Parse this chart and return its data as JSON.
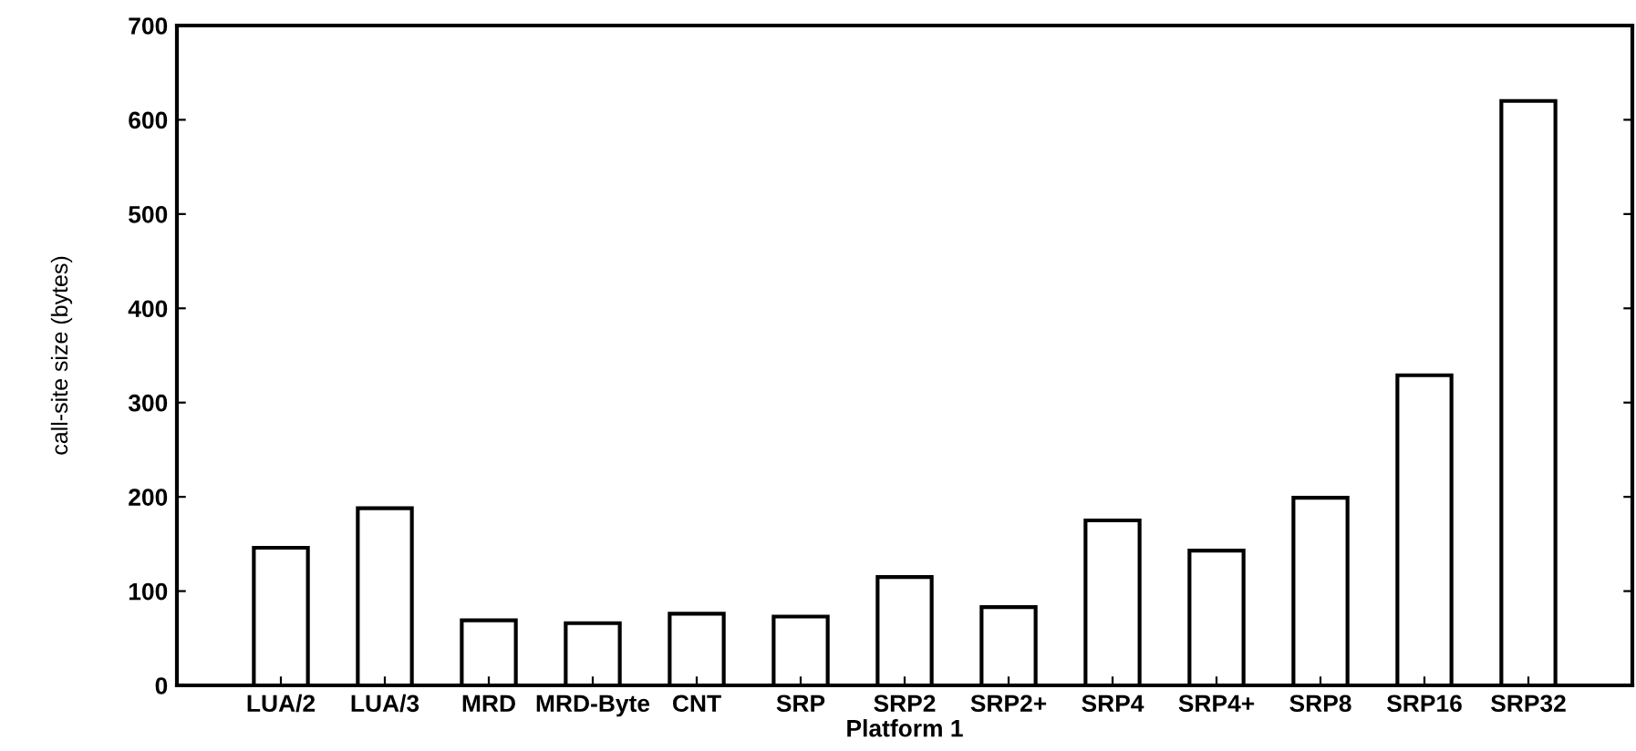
{
  "chart_data": {
    "type": "bar",
    "xlabel": "Platform 1",
    "ylabel": "call-site size (bytes)",
    "categories": [
      "LUA/2",
      "LUA/3",
      "MRD",
      "MRD-Byte",
      "CNT",
      "SRP",
      "SRP2",
      "SRP2+",
      "SRP4",
      "SRP4+",
      "SRP8",
      "SRP16",
      "SRP32"
    ],
    "values": [
      146,
      188,
      69,
      66,
      76,
      73,
      115,
      83,
      175,
      143,
      199,
      329,
      620
    ],
    "color": "#ffffff",
    "ylim": [
      0,
      700
    ],
    "yticks": [
      0,
      100,
      200,
      300,
      400,
      500,
      600,
      700
    ],
    "grid": false
  }
}
